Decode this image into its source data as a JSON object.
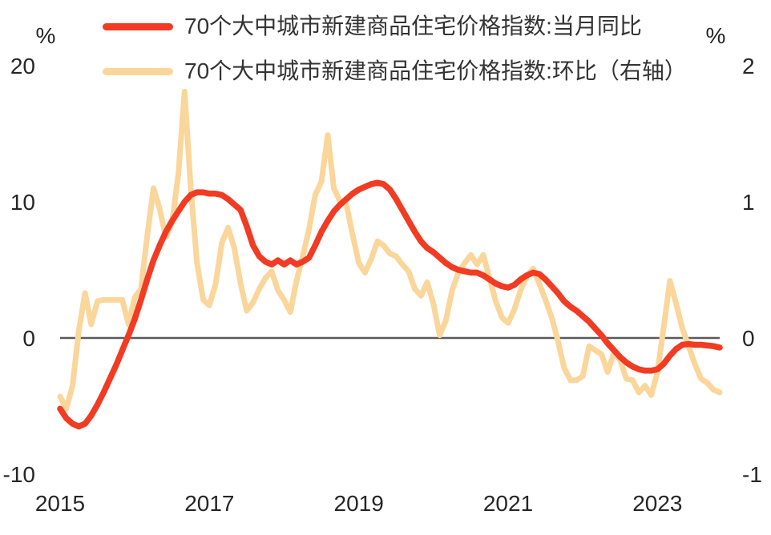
{
  "chart_data": {
    "type": "line",
    "title": "",
    "frequency": "monthly",
    "x_start": "2015-01",
    "x_end": "2023-11",
    "grid": false,
    "zero_line": true,
    "legend_position": "top-left",
    "x_tick_labels": [
      "2015",
      "2017",
      "2019",
      "2021",
      "2023"
    ],
    "x_tick_years": [
      2015,
      2017,
      2019,
      2021,
      2023
    ],
    "left_axis": {
      "label": "%",
      "ticks": [
        "20",
        "10",
        "0",
        "-10"
      ],
      "tick_values": [
        20,
        10,
        0,
        -10
      ],
      "range": [
        -10,
        20
      ]
    },
    "right_axis": {
      "label": "%",
      "ticks": [
        "2",
        "1",
        "0",
        "-1"
      ],
      "tick_values": [
        2,
        1,
        0,
        -1
      ],
      "range": [
        -1,
        2
      ]
    },
    "series": [
      {
        "name": "70个大中城市新建商品住宅价格指数:当月同比",
        "axis": "left",
        "color": "#F23B23",
        "stroke_width": 7.5,
        "values": [
          -5.2,
          -5.9,
          -6.3,
          -6.5,
          -6.3,
          -5.7,
          -4.9,
          -4.0,
          -3.0,
          -2.0,
          -0.9,
          0.2,
          1.4,
          2.8,
          4.3,
          5.7,
          6.8,
          7.8,
          8.6,
          9.3,
          10.0,
          10.5,
          10.7,
          10.7,
          10.6,
          10.6,
          10.5,
          10.2,
          9.8,
          9.4,
          8.2,
          6.8,
          6.0,
          5.6,
          5.4,
          5.7,
          5.4,
          5.7,
          5.4,
          5.6,
          5.9,
          6.8,
          7.8,
          8.6,
          9.3,
          9.8,
          10.2,
          10.6,
          10.9,
          11.1,
          11.3,
          11.4,
          11.3,
          10.9,
          10.2,
          9.4,
          8.6,
          7.8,
          7.1,
          6.6,
          6.3,
          5.9,
          5.5,
          5.2,
          5.0,
          4.9,
          4.8,
          4.8,
          4.6,
          4.3,
          4.0,
          3.8,
          3.7,
          3.9,
          4.3,
          4.6,
          4.8,
          4.7,
          4.3,
          3.8,
          3.3,
          2.7,
          2.3,
          2.0,
          1.6,
          1.2,
          0.7,
          0.2,
          -0.4,
          -0.9,
          -1.4,
          -1.8,
          -2.1,
          -2.3,
          -2.4,
          -2.4,
          -2.3,
          -1.9,
          -1.3,
          -0.8,
          -0.5,
          -0.45,
          -0.5,
          -0.5,
          -0.55,
          -0.6,
          -0.7
        ]
      },
      {
        "name": "70个大中城市新建商品住宅价格指数:环比（右轴）",
        "axis": "right",
        "color": "#FAD69B",
        "stroke_width": 7,
        "values": [
          -0.43,
          -0.52,
          -0.35,
          0.05,
          0.33,
          0.1,
          0.27,
          0.28,
          0.28,
          0.28,
          0.28,
          0.1,
          0.3,
          0.36,
          0.75,
          1.1,
          0.95,
          0.74,
          0.85,
          1.2,
          1.81,
          1.1,
          0.55,
          0.28,
          0.24,
          0.4,
          0.7,
          0.81,
          0.66,
          0.4,
          0.2,
          0.26,
          0.36,
          0.44,
          0.49,
          0.35,
          0.28,
          0.19,
          0.42,
          0.6,
          0.8,
          1.05,
          1.15,
          1.49,
          1.1,
          1.0,
          0.98,
          0.76,
          0.55,
          0.48,
          0.58,
          0.71,
          0.68,
          0.62,
          0.6,
          0.54,
          0.49,
          0.36,
          0.31,
          0.41,
          0.25,
          0.02,
          0.13,
          0.35,
          0.48,
          0.55,
          0.61,
          0.54,
          0.61,
          0.44,
          0.27,
          0.15,
          0.11,
          0.21,
          0.35,
          0.45,
          0.51,
          0.4,
          0.28,
          0.15,
          -0.02,
          -0.22,
          -0.31,
          -0.31,
          -0.28,
          -0.06,
          -0.09,
          -0.12,
          -0.25,
          -0.11,
          -0.16,
          -0.3,
          -0.31,
          -0.4,
          -0.35,
          -0.42,
          -0.25,
          0.08,
          0.42,
          0.25,
          0.07,
          -0.06,
          -0.19,
          -0.3,
          -0.33,
          -0.38,
          -0.4
        ]
      }
    ]
  }
}
